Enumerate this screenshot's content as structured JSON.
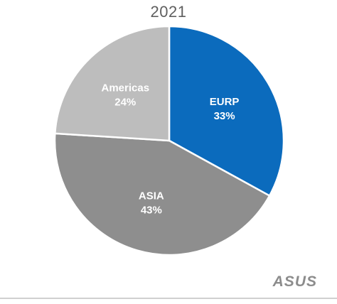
{
  "chart_data": {
    "type": "pie",
    "title": "2021",
    "slices": [
      {
        "label": "EURP",
        "value": 33,
        "value_label": "33%",
        "color": "#0b6bbd",
        "text_color": "#ffffff"
      },
      {
        "label": "ASIA",
        "value": 43,
        "value_label": "43%",
        "color": "#8e8e8e",
        "text_color": "#ffffff"
      },
      {
        "label": "Americas",
        "value": 24,
        "value_label": "24%",
        "color": "#bdbdbd",
        "text_color": "#ffffff"
      }
    ],
    "start": "12 o'clock",
    "direction": "clockwise",
    "legend": "none",
    "slice_separator_color": "#ffffff"
  },
  "branding": {
    "logo_text": "ASUS",
    "logo_color": "#8c8c8c"
  }
}
